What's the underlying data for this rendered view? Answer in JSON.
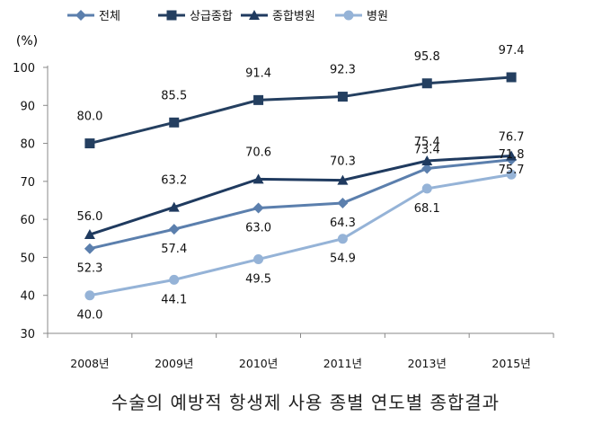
{
  "chart_data": {
    "type": "line",
    "title": "수술의 예방적 항생제 사용 종별 연도별 종합결과",
    "ylabel": "(%)",
    "ylim": [
      30,
      100
    ],
    "yticks": [
      30,
      40,
      50,
      60,
      70,
      80,
      90,
      100
    ],
    "categories": [
      "2008년",
      "2009년",
      "2010년",
      "2011년",
      "2013년",
      "2015년"
    ],
    "grid": false,
    "legend_position": "top-left",
    "series": [
      {
        "name": "전체",
        "marker": "diamond",
        "color": "#5b7fad",
        "values": [
          52.3,
          57.4,
          63.0,
          64.3,
          73.4,
          75.7
        ]
      },
      {
        "name": "상급종합",
        "marker": "square",
        "color": "#243f60",
        "values": [
          80.0,
          85.5,
          91.4,
          92.3,
          95.8,
          97.4
        ]
      },
      {
        "name": "종합병원",
        "marker": "triangle",
        "color": "#1f3a5f",
        "values": [
          56.0,
          63.2,
          70.6,
          70.3,
          75.4,
          76.7
        ]
      },
      {
        "name": "병원",
        "marker": "circle",
        "color": "#95b3d7",
        "values": [
          40.0,
          44.1,
          49.5,
          54.9,
          68.1,
          71.8
        ]
      }
    ]
  }
}
